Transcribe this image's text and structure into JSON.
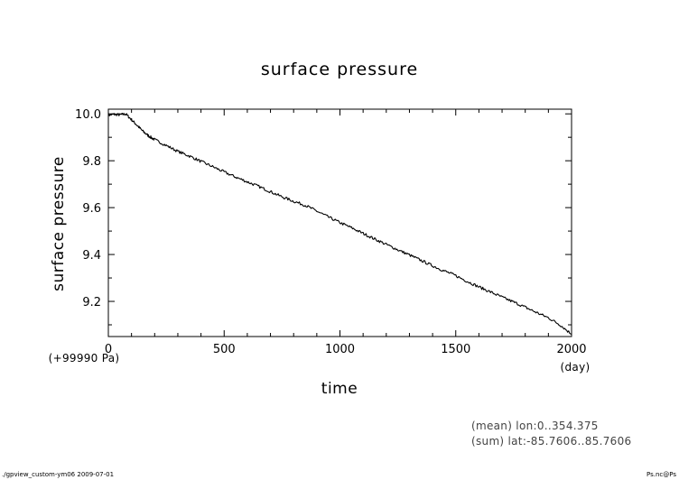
{
  "footer": {
    "left": "./gpview_custom-ym06  2009-07-01",
    "right": "Ps.nc@Ps"
  },
  "notes": {
    "mean": "(mean) lon:0..354.375",
    "sum": "(sum) lat:-85.7606..85.7606"
  },
  "chart_data": {
    "type": "line",
    "title": "surface pressure",
    "xlabel": "time",
    "ylabel": "surface pressure",
    "x_unit": "(day)",
    "y_offset_label": "(+99990 Pa)",
    "xlim": [
      0,
      2000
    ],
    "ylim": [
      9.05,
      10.02
    ],
    "x_ticks": [
      0,
      500,
      1000,
      1500,
      2000
    ],
    "x_tick_labels": [
      "0",
      "500",
      "1000",
      "1500",
      "2000"
    ],
    "y_ticks": [
      9.2,
      9.4,
      9.6,
      9.8,
      10.0
    ],
    "y_tick_labels": [
      "9.2",
      "9.4",
      "9.6",
      "9.8",
      "10.0"
    ],
    "grid": false,
    "color": "#000000",
    "series": [
      {
        "x": [
          0,
          25,
          50,
          75,
          100,
          125,
          150,
          175,
          200,
          250,
          300,
          350,
          400,
          450,
          500,
          550,
          600,
          650,
          700,
          750,
          800,
          850,
          900,
          950,
          1000,
          1050,
          1100,
          1150,
          1200,
          1250,
          1300,
          1350,
          1400,
          1450,
          1500,
          1550,
          1600,
          1650,
          1700,
          1750,
          1800,
          1850,
          1900,
          1950,
          2000
        ],
        "values": [
          9.995,
          9.998,
          9.996,
          10.0,
          9.975,
          9.95,
          9.925,
          9.905,
          9.89,
          9.865,
          9.84,
          9.82,
          9.797,
          9.775,
          9.752,
          9.73,
          9.71,
          9.69,
          9.668,
          9.646,
          9.627,
          9.61,
          9.585,
          9.56,
          9.536,
          9.514,
          9.49,
          9.466,
          9.443,
          9.42,
          9.398,
          9.375,
          9.352,
          9.33,
          9.31,
          9.285,
          9.262,
          9.24,
          9.218,
          9.197,
          9.175,
          9.152,
          9.13,
          9.1,
          9.06
        ]
      }
    ]
  }
}
